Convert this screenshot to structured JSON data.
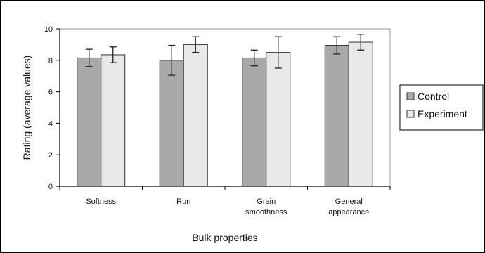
{
  "chart_data": {
    "type": "bar",
    "categories": [
      [
        "Softness"
      ],
      [
        "Run"
      ],
      [
        "Grain",
        "smoothness"
      ],
      [
        "General",
        "appearance"
      ]
    ],
    "series": [
      {
        "name": "Control",
        "values": [
          8.15,
          8.0,
          8.15,
          8.95
        ],
        "errors": [
          0.55,
          0.95,
          0.5,
          0.55
        ],
        "color": "#a9a9a9"
      },
      {
        "name": "Experiment",
        "values": [
          8.35,
          9.0,
          8.5,
          9.15
        ],
        "errors": [
          0.5,
          0.5,
          1.0,
          0.5
        ],
        "color": "#e9e9e9"
      }
    ],
    "xlabel": "Bulk properties",
    "ylabel": "Rating (average values)",
    "ylim": [
      0,
      10
    ],
    "yticks": [
      0,
      2,
      4,
      6,
      8,
      10
    ],
    "grid": false,
    "legend_position": "right"
  }
}
